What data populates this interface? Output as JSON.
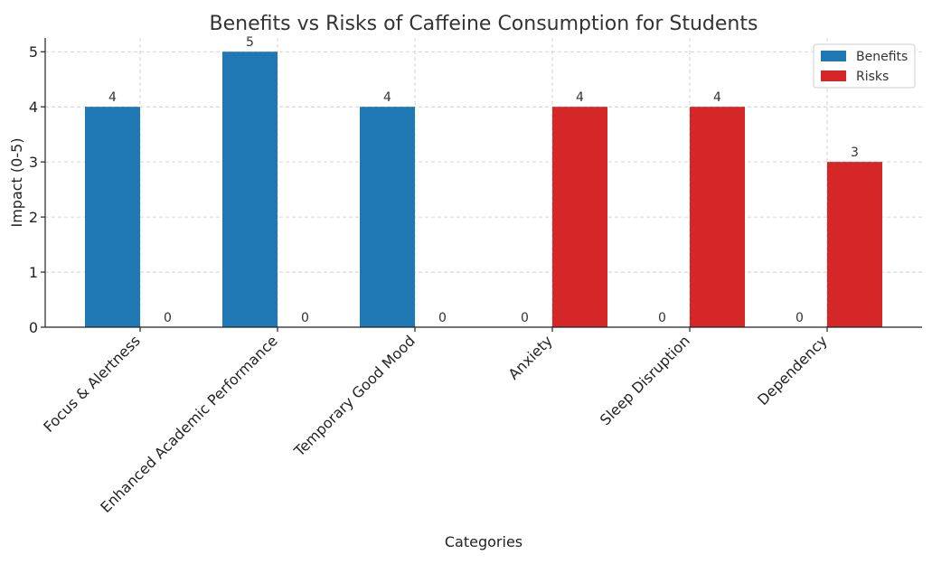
{
  "chart_data": {
    "type": "bar",
    "title": "Benefits vs Risks of Caffeine Consumption for Students",
    "xlabel": "Categories",
    "ylabel": "Impact (0-5)",
    "ylim": [
      0,
      5.25
    ],
    "yticks": [
      0,
      1,
      2,
      3,
      4,
      5
    ],
    "grid": true,
    "legend_position": "top-right",
    "categories": [
      "Focus & Alertness",
      "Enhanced Academic Performance",
      "Temporary Good Mood",
      "Anxiety",
      "Sleep Disruption",
      "Dependency"
    ],
    "series": [
      {
        "name": "Benefits",
        "color": "#1f77b4",
        "values": [
          4,
          5,
          4,
          0,
          0,
          0
        ]
      },
      {
        "name": "Risks",
        "color": "#d62728",
        "values": [
          0,
          0,
          0,
          4,
          4,
          3
        ]
      }
    ]
  }
}
